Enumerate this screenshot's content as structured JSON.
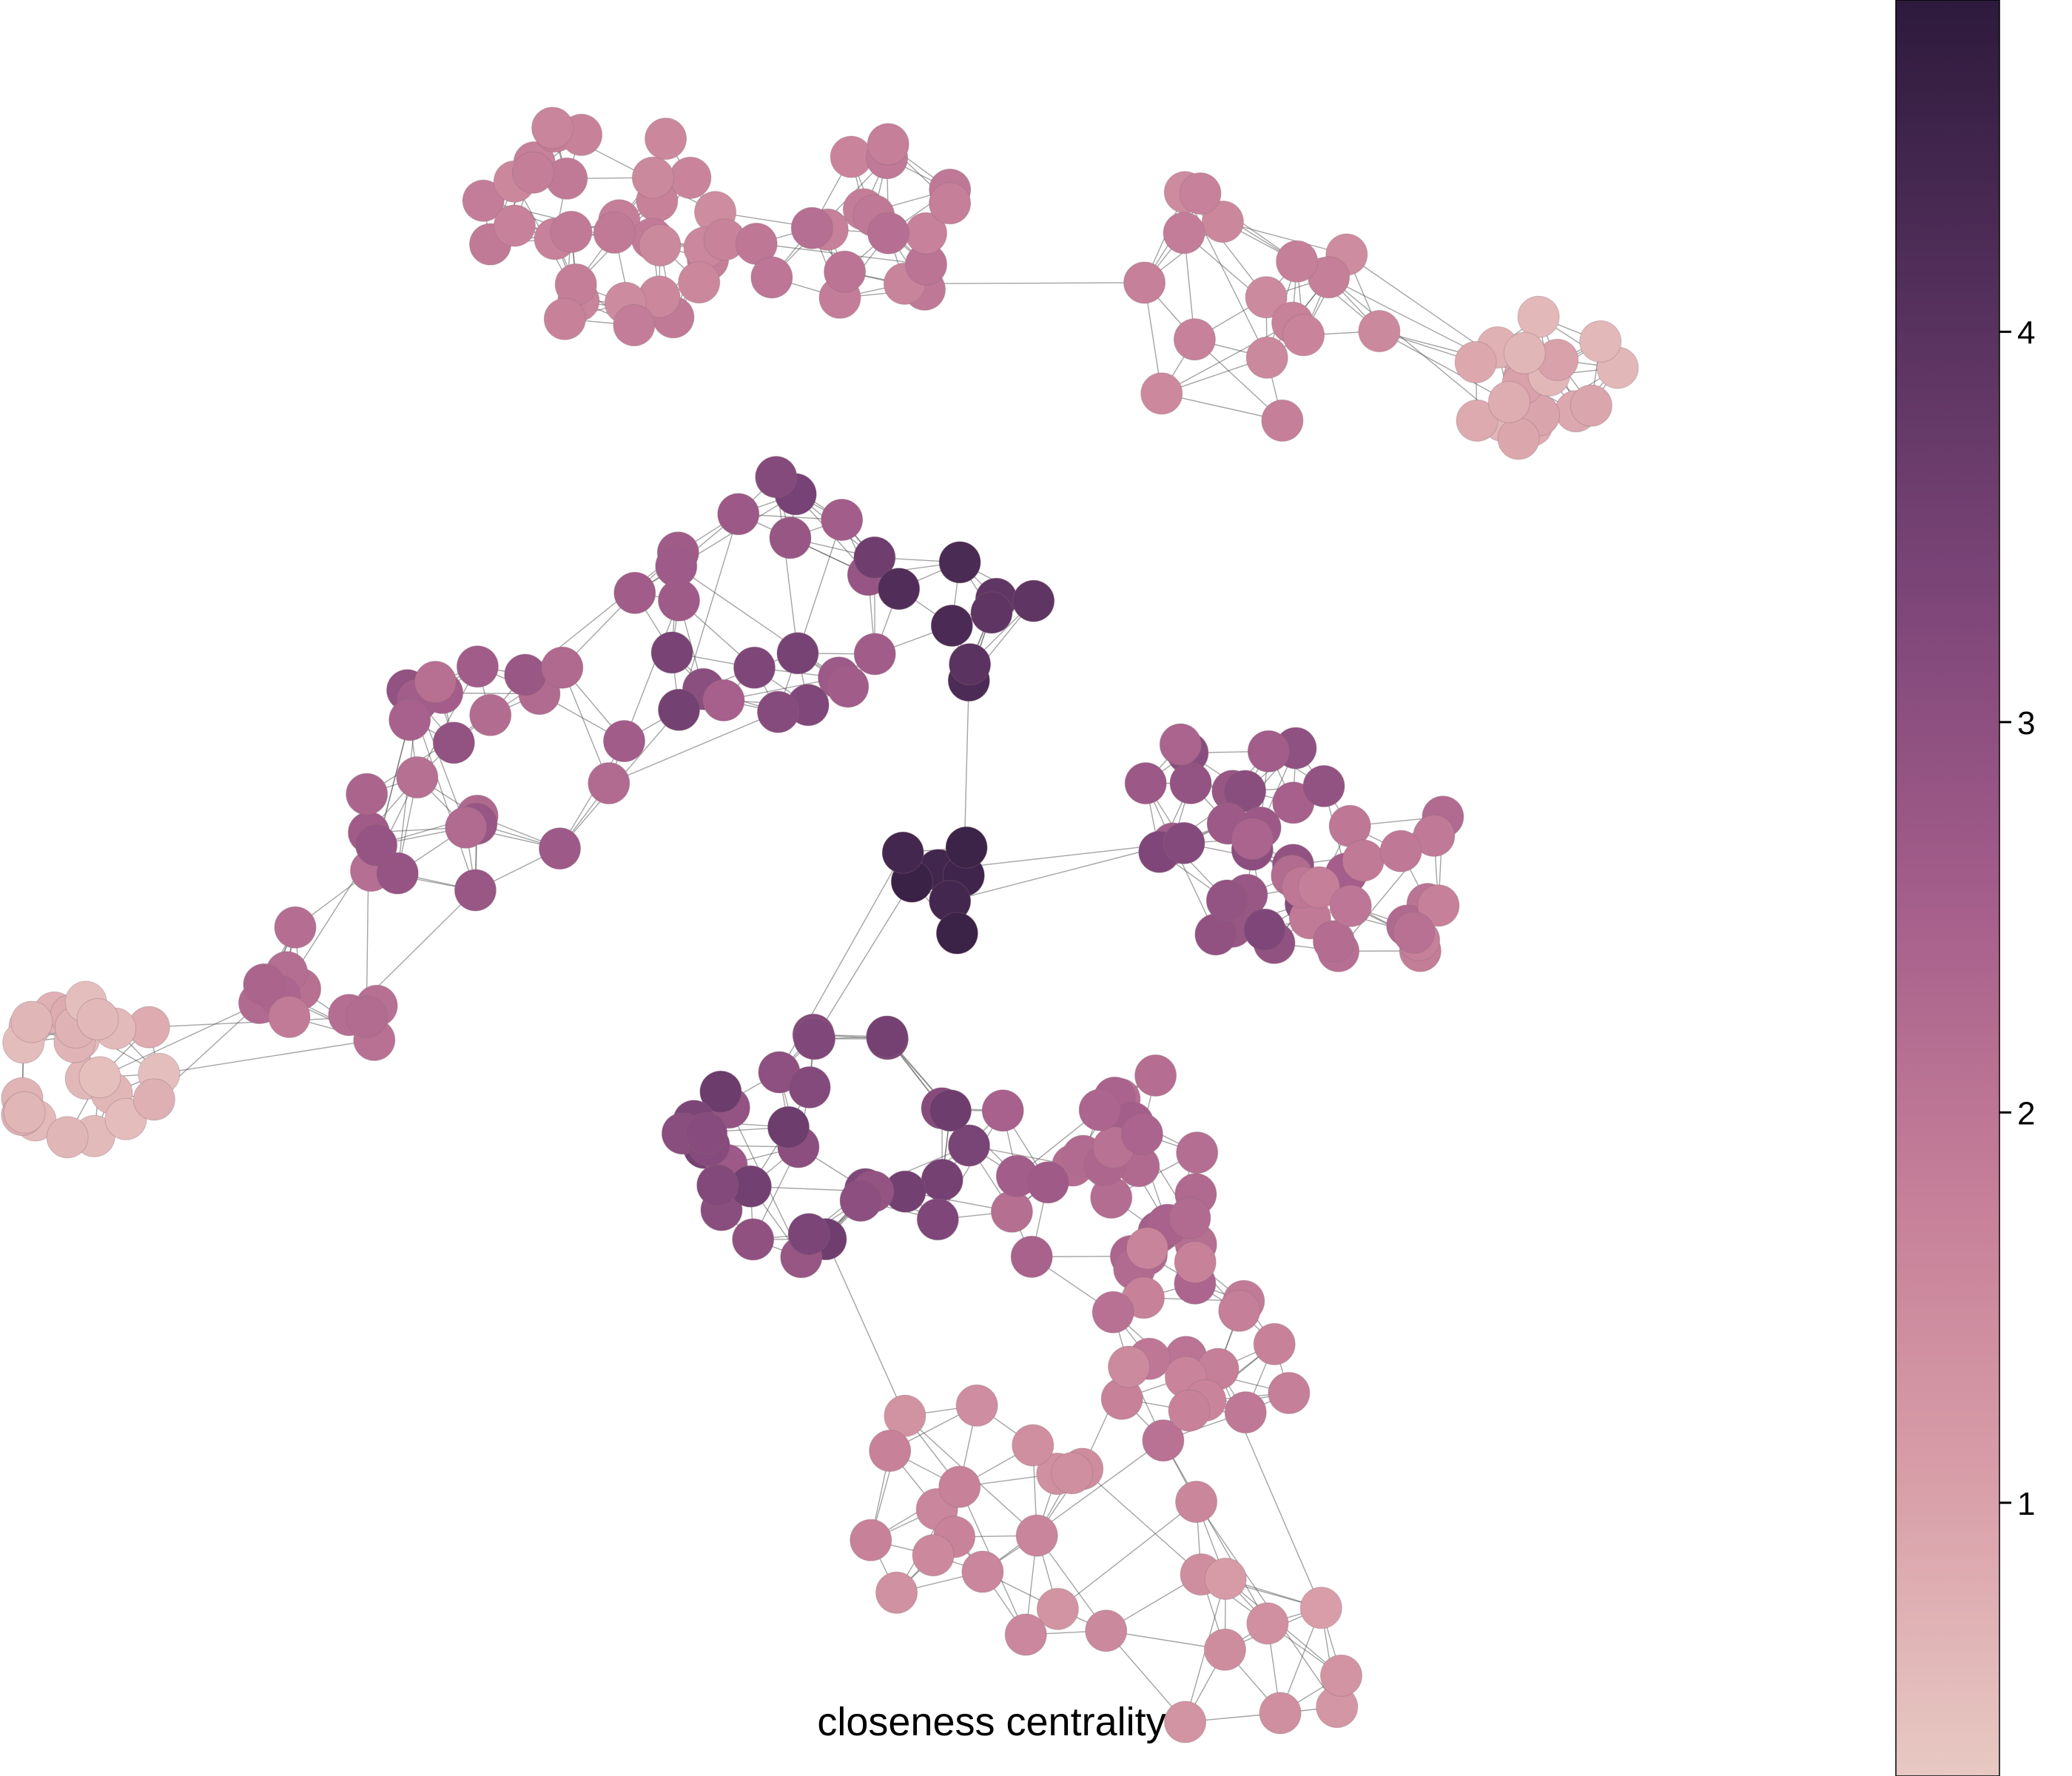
{
  "figure": {
    "caption": "closeness centrality"
  },
  "colorbar": {
    "ticks": [
      {
        "value": 1,
        "label": "1"
      },
      {
        "value": 2,
        "label": "2"
      },
      {
        "value": 3,
        "label": "3"
      },
      {
        "value": 4,
        "label": "4"
      }
    ],
    "range": [
      0.3,
      4.85
    ],
    "colors": [
      "#e8c9c3",
      "#d89ea8",
      "#c57e98",
      "#a35d8a",
      "#7c4578",
      "#54305c",
      "#2d1a3c"
    ]
  },
  "colors": {
    "edge": "#4a4a4a",
    "background": "#ffffff"
  }
}
